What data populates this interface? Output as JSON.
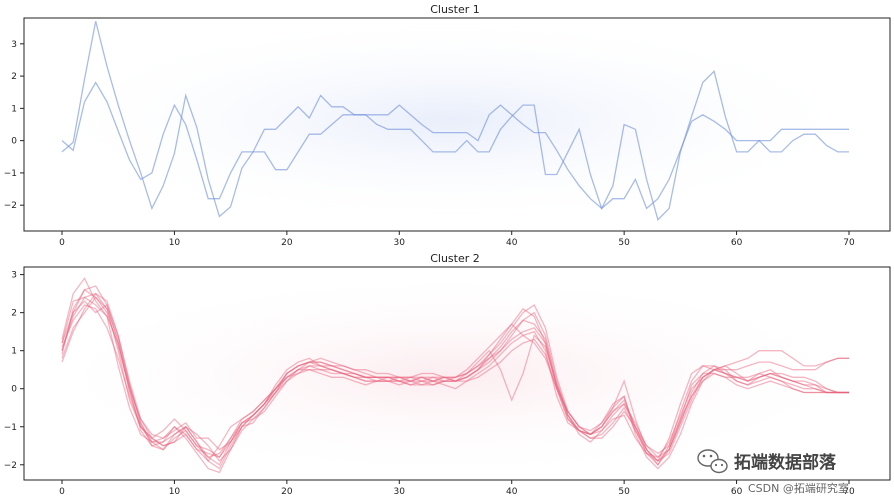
{
  "watermark": {
    "brand": "拓端数据部落",
    "credit": "CSDN @拓端研究室",
    "icon": "wechat-icon"
  },
  "chart_data": [
    {
      "type": "line",
      "title": "Cluster 1",
      "xlabel": "",
      "ylabel": "",
      "xlim": [
        0,
        70
      ],
      "ylim": [
        -2.8,
        3.8
      ],
      "xticks": [
        0,
        10,
        20,
        30,
        40,
        50,
        60,
        70
      ],
      "yticks": [
        -2,
        -1,
        0,
        1,
        2,
        3
      ],
      "grid": false,
      "color": "#6f8fd8",
      "series": [
        {
          "values": [
            0,
            -0.3,
            1.2,
            1.8,
            1.2,
            0.3,
            -0.6,
            -1.2,
            -1.0,
            0.2,
            1.1,
            0.5,
            -0.6,
            -1.8,
            -1.8,
            -1.0,
            -0.35,
            -0.35,
            0.35,
            0.35,
            0.7,
            1.05,
            0.7,
            1.4,
            1.05,
            1.05,
            0.8,
            0.8,
            0.8,
            0.8,
            1.1,
            0.8,
            0.5,
            0.25,
            0.25,
            0.25,
            0.25,
            0,
            0.8,
            1.1,
            0.8,
            0.5,
            0.25,
            0.25,
            -0.3,
            -0.9,
            -1.4,
            -1.8,
            -2.1,
            -1.8,
            -1.8,
            -1.2,
            -2.1,
            -1.8,
            -1.2,
            -0.3,
            0.6,
            0.8,
            0.6,
            0.35,
            0,
            0,
            0,
            0,
            0.35,
            0.35,
            0.35,
            0.35,
            0.35,
            0.35,
            0.35
          ]
        },
        {
          "values": [
            -0.35,
            -0.05,
            1.9,
            3.7,
            2.3,
            1.1,
            0,
            -1.0,
            -2.1,
            -1.4,
            -0.4,
            1.4,
            0.4,
            -1.2,
            -2.35,
            -2.05,
            -0.85,
            -0.35,
            -0.35,
            -0.9,
            -0.9,
            -0.35,
            0.2,
            0.2,
            0.5,
            0.8,
            0.8,
            0.8,
            0.5,
            0.35,
            0.35,
            0.35,
            0,
            -0.35,
            -0.35,
            -0.35,
            0,
            -0.35,
            -0.35,
            0.35,
            0.75,
            1.1,
            1.1,
            -1.05,
            -1.05,
            -0.35,
            0.35,
            -1.05,
            -2.1,
            -1.4,
            0.5,
            0.35,
            -1.2,
            -2.45,
            -2.1,
            -0.35,
            0.75,
            1.8,
            2.15,
            0.75,
            -0.35,
            -0.35,
            0,
            -0.35,
            -0.35,
            0,
            0.2,
            0.2,
            -0.15,
            -0.35,
            -0.35
          ]
        }
      ]
    },
    {
      "type": "line",
      "title": "Cluster 2",
      "xlabel": "",
      "ylabel": "",
      "xlim": [
        0,
        70
      ],
      "ylim": [
        -2.4,
        3.2
      ],
      "xticks": [
        0,
        10,
        20,
        30,
        40,
        50,
        60,
        70
      ],
      "yticks": [
        -2,
        -1,
        0,
        1,
        2,
        3
      ],
      "grid": false,
      "color": "#e8607a",
      "series": [
        {
          "values": [
            1.0,
            2.0,
            2.6,
            2.4,
            2.1,
            1.0,
            -0.3,
            -1.0,
            -1.3,
            -1.5,
            -1.4,
            -1.2,
            -1.6,
            -1.9,
            -1.5,
            -1.0,
            -0.8,
            -0.6,
            -0.3,
            0.0,
            0.4,
            0.6,
            0.7,
            0.7,
            0.6,
            0.5,
            0.4,
            0.3,
            0.3,
            0.2,
            0.2,
            0.3,
            0.3,
            0.2,
            0.3,
            0.3,
            0.4,
            0.6,
            0.8,
            1.0,
            1.3,
            1.5,
            1.6,
            1.2,
            0.0,
            -0.8,
            -1.1,
            -1.2,
            -1.0,
            -0.6,
            -0.3,
            -1.0,
            -1.7,
            -2.0,
            -1.6,
            -0.8,
            0.1,
            0.4,
            0.4,
            0.3,
            0.3,
            0.2,
            0.3,
            0.4,
            0.4,
            0.3,
            0.3,
            0.2,
            0.0,
            -0.1,
            -0.1
          ]
        },
        {
          "values": [
            0.7,
            1.5,
            2.1,
            2.5,
            2.3,
            1.4,
            0.1,
            -0.9,
            -1.5,
            -1.6,
            -1.2,
            -1.0,
            -1.4,
            -1.8,
            -2.0,
            -1.4,
            -0.9,
            -0.8,
            -0.5,
            -0.1,
            0.3,
            0.5,
            0.5,
            0.4,
            0.3,
            0.3,
            0.2,
            0.1,
            0.2,
            0.2,
            0.1,
            0.2,
            0.3,
            0.2,
            0.1,
            0.0,
            0.2,
            0.4,
            0.6,
            0.9,
            1.2,
            1.4,
            1.5,
            1.0,
            -0.2,
            -0.9,
            -1.1,
            -1.3,
            -1.2,
            -0.9,
            -0.5,
            -1.1,
            -1.6,
            -1.9,
            -1.7,
            -1.0,
            -0.3,
            0.3,
            0.5,
            0.5,
            0.2,
            0.1,
            0.2,
            0.3,
            0.2,
            0.1,
            0.0,
            0.0,
            -0.1,
            -0.1,
            -0.1
          ]
        },
        {
          "values": [
            1.3,
            2.5,
            2.9,
            2.3,
            1.9,
            0.6,
            -0.5,
            -1.2,
            -1.4,
            -1.3,
            -1.0,
            -1.3,
            -1.7,
            -2.1,
            -2.2,
            -1.6,
            -1.0,
            -0.7,
            -0.4,
            0.1,
            0.5,
            0.7,
            0.8,
            0.6,
            0.5,
            0.4,
            0.3,
            0.2,
            0.2,
            0.3,
            0.2,
            0.1,
            0.1,
            0.2,
            0.3,
            0.2,
            0.3,
            0.5,
            0.9,
            1.2,
            1.6,
            2.0,
            2.2,
            1.6,
            0.3,
            -0.6,
            -1.0,
            -1.2,
            -0.9,
            -0.4,
            -0.2,
            -1.2,
            -1.8,
            -2.1,
            -1.8,
            -1.2,
            -0.4,
            0.2,
            0.5,
            0.6,
            0.4,
            0.2,
            0.4,
            0.5,
            0.3,
            0.2,
            0.2,
            0.1,
            -0.1,
            -0.1,
            -0.1
          ]
        },
        {
          "values": [
            1.1,
            1.8,
            2.2,
            2.1,
            1.6,
            0.8,
            -0.2,
            -1.0,
            -1.3,
            -1.1,
            -0.8,
            -1.1,
            -1.5,
            -1.8,
            -1.7,
            -1.3,
            -0.9,
            -0.7,
            -0.4,
            0.0,
            0.3,
            0.5,
            0.6,
            0.6,
            0.5,
            0.4,
            0.4,
            0.3,
            0.3,
            0.3,
            0.2,
            0.2,
            0.3,
            0.3,
            0.2,
            0.2,
            0.3,
            0.5,
            0.7,
            1.0,
            1.4,
            1.8,
            2.0,
            1.4,
            0.2,
            -0.7,
            -1.2,
            -1.4,
            -1.1,
            -0.7,
            -0.4,
            -0.9,
            -1.5,
            -1.8,
            -1.6,
            -0.9,
            -0.1,
            0.4,
            0.6,
            0.4,
            0.3,
            0.3,
            0.4,
            0.3,
            0.2,
            0.0,
            -0.1,
            -0.1,
            -0.1,
            -0.1,
            -0.1
          ]
        },
        {
          "values": [
            0.9,
            2.1,
            2.6,
            2.7,
            2.2,
            1.2,
            0.0,
            -0.8,
            -1.3,
            -1.5,
            -1.4,
            -1.0,
            -1.2,
            -1.5,
            -1.9,
            -1.6,
            -1.1,
            -0.8,
            -0.6,
            -0.2,
            0.2,
            0.5,
            0.7,
            0.8,
            0.7,
            0.6,
            0.5,
            0.4,
            0.3,
            0.3,
            0.3,
            0.2,
            0.1,
            0.1,
            0.2,
            0.3,
            0.4,
            0.6,
            0.9,
            1.3,
            1.7,
            2.1,
            1.9,
            1.2,
            0.1,
            -0.7,
            -1.1,
            -1.2,
            -1.0,
            -0.5,
            0.2,
            -0.8,
            -1.6,
            -2.0,
            -1.5,
            -0.6,
            0.2,
            0.6,
            0.6,
            0.5,
            0.5,
            0.6,
            0.7,
            0.7,
            0.6,
            0.5,
            0.5,
            0.5,
            0.7,
            0.8,
            0.8
          ]
        },
        {
          "values": [
            1.2,
            2.0,
            2.3,
            2.0,
            2.2,
            1.4,
            0.2,
            -0.8,
            -1.2,
            -1.3,
            -1.1,
            -0.9,
            -1.3,
            -1.3,
            -1.6,
            -1.4,
            -1.0,
            -0.9,
            -0.5,
            -0.1,
            0.4,
            0.6,
            0.7,
            0.7,
            0.6,
            0.6,
            0.5,
            0.5,
            0.4,
            0.4,
            0.3,
            0.3,
            0.4,
            0.4,
            0.3,
            0.3,
            0.5,
            0.8,
            1.1,
            1.4,
            1.7,
            1.4,
            1.2,
            0.8,
            0.0,
            -0.6,
            -1.0,
            -1.2,
            -1.1,
            -0.8,
            -0.7,
            -1.3,
            -1.7,
            -1.8,
            -1.4,
            -0.7,
            0.0,
            0.3,
            0.5,
            0.6,
            0.7,
            0.8,
            1.0,
            1.0,
            1.0,
            0.8,
            0.6,
            0.6,
            0.7,
            0.8,
            0.8
          ]
        },
        {
          "values": [
            0.8,
            1.6,
            2.0,
            2.4,
            2.0,
            1.1,
            0.0,
            -1.1,
            -1.5,
            -1.4,
            -1.0,
            -1.2,
            -1.6,
            -1.7,
            -1.8,
            -1.3,
            -0.8,
            -0.6,
            -0.3,
            0.0,
            0.3,
            0.4,
            0.5,
            0.5,
            0.4,
            0.4,
            0.3,
            0.3,
            0.2,
            0.2,
            0.2,
            0.1,
            0.2,
            0.3,
            0.3,
            0.2,
            0.2,
            0.3,
            0.5,
            0.7,
            1.0,
            1.2,
            1.3,
            0.9,
            0.0,
            -0.8,
            -1.1,
            -1.3,
            -1.3,
            -1.0,
            -0.6,
            -1.0,
            -1.5,
            -1.7,
            -1.5,
            -0.8,
            -0.2,
            0.2,
            0.4,
            0.3,
            0.1,
            0.0,
            0.1,
            0.2,
            0.1,
            0.0,
            -0.1,
            -0.1,
            -0.1,
            -0.1,
            -0.1
          ]
        },
        {
          "values": [
            1.0,
            1.9,
            2.4,
            2.2,
            1.9,
            1.2,
            0.1,
            -0.9,
            -1.4,
            -1.6,
            -1.3,
            -1.1,
            -1.5,
            -1.6,
            -1.8,
            -1.4,
            -0.9,
            -0.7,
            -0.4,
            -0.1,
            0.2,
            0.4,
            0.6,
            0.5,
            0.5,
            0.4,
            0.3,
            0.2,
            0.2,
            0.2,
            0.3,
            0.2,
            0.2,
            0.1,
            0.2,
            0.2,
            0.4,
            0.7,
            1.0,
            0.5,
            -0.3,
            0.4,
            1.4,
            1.1,
            0.1,
            -0.6,
            -1.0,
            -1.1,
            -0.9,
            -0.5,
            -0.2,
            -1.1,
            -1.7,
            -1.9,
            -1.3,
            -0.4,
            0.4,
            0.6,
            0.5,
            0.4,
            0.2,
            0.1,
            0.3,
            0.4,
            0.3,
            0.2,
            0.1,
            0.0,
            -0.1,
            -0.1,
            -0.1
          ]
        },
        {
          "values": [
            1.2,
            2.3,
            2.4,
            2.5,
            2.1,
            1.3,
            -0.1,
            -1.0,
            -1.4,
            -1.4,
            -1.2,
            -1.0,
            -1.4,
            -1.9,
            -2.1,
            -1.5,
            -1.0,
            -0.7,
            -0.4,
            0.0,
            0.4,
            0.6,
            0.7,
            0.6,
            0.6,
            0.5,
            0.4,
            0.3,
            0.3,
            0.3,
            0.3,
            0.3,
            0.2,
            0.2,
            0.2,
            0.2,
            0.3,
            0.5,
            0.8,
            1.1,
            1.5,
            1.8,
            1.7,
            1.3,
            0.1,
            -0.7,
            -1.1,
            -1.2,
            -1.0,
            -0.6,
            -0.4,
            -1.0,
            -1.6,
            -1.9,
            -1.6,
            -0.9,
            -0.2,
            0.3,
            0.5,
            0.4,
            0.3,
            0.2,
            0.3,
            0.4,
            0.3,
            0.2,
            0.1,
            0.1,
            0.0,
            -0.1,
            -0.1
          ]
        }
      ]
    }
  ]
}
